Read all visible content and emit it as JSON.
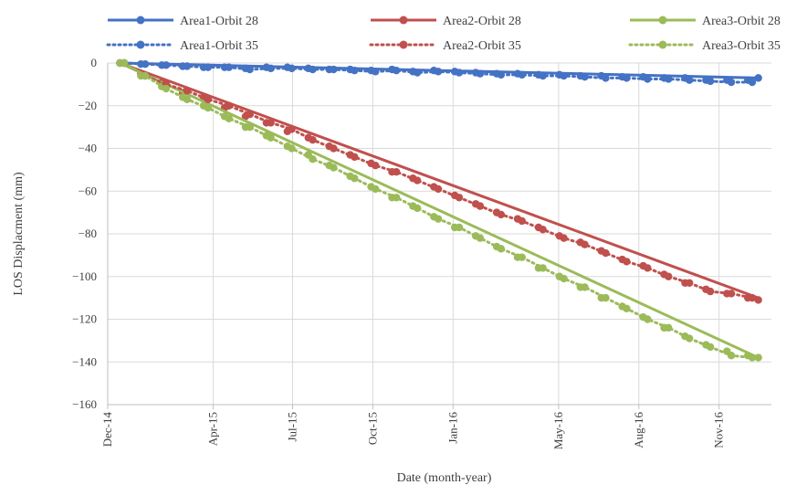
{
  "chart_data": {
    "type": "line",
    "xlabel": "Date  (month-year)",
    "ylabel": "LOS Displacment (mm)",
    "x_range": [
      "2014-12-01",
      "2016-12-31"
    ],
    "ylim": [
      -160,
      0
    ],
    "y_ticks": [
      0,
      -20,
      -40,
      -60,
      -80,
      -100,
      -120,
      -140,
      -160
    ],
    "x_ticks": [
      {
        "date": "2014-12-01",
        "label": "Dec-14"
      },
      {
        "date": "2015-04-01",
        "label": "Apr-15"
      },
      {
        "date": "2015-07-01",
        "label": "Jul-15"
      },
      {
        "date": "2015-10-01",
        "label": "Oct-15"
      },
      {
        "date": "2016-01-01",
        "label": "Jan-16"
      },
      {
        "date": "2016-05-01",
        "label": "May-16"
      },
      {
        "date": "2016-08-01",
        "label": "Aug-16"
      },
      {
        "date": "2016-11-01",
        "label": "Nov-16"
      }
    ],
    "grid": true,
    "legend_position": "top",
    "series": [
      {
        "name": "Area1-Orbit 28",
        "color": "#4472C4",
        "dash": "solid",
        "trend_end": -7,
        "points": [
          [
            "2014-12-15",
            0
          ],
          [
            "2015-01-08",
            -0.5
          ],
          [
            "2015-02-01",
            -1
          ],
          [
            "2015-02-25",
            -1.5
          ],
          [
            "2015-03-21",
            -2
          ],
          [
            "2015-04-14",
            -2
          ],
          [
            "2015-05-08",
            -2.5
          ],
          [
            "2015-06-01",
            -2
          ],
          [
            "2015-06-25",
            -2
          ],
          [
            "2015-07-19",
            -2.5
          ],
          [
            "2015-08-12",
            -3
          ],
          [
            "2015-09-05",
            -3
          ],
          [
            "2015-09-29",
            -3.5
          ],
          [
            "2015-10-23",
            -3
          ],
          [
            "2015-11-16",
            -4
          ],
          [
            "2015-12-10",
            -3.5
          ],
          [
            "2016-01-03",
            -4
          ],
          [
            "2016-01-27",
            -4.5
          ],
          [
            "2016-02-20",
            -5
          ],
          [
            "2016-03-15",
            -5
          ],
          [
            "2016-04-08",
            -5.5
          ],
          [
            "2016-05-02",
            -5.5
          ],
          [
            "2016-05-26",
            -6
          ],
          [
            "2016-06-19",
            -6
          ],
          [
            "2016-07-13",
            -6.5
          ],
          [
            "2016-08-06",
            -6.5
          ],
          [
            "2016-08-30",
            -7
          ],
          [
            "2016-09-23",
            -7
          ],
          [
            "2016-10-17",
            -8
          ],
          [
            "2016-11-10",
            -8
          ],
          [
            "2016-12-04",
            -8
          ],
          [
            "2016-12-16",
            -7
          ]
        ]
      },
      {
        "name": "Area2-Orbit 28",
        "color": "#C0504D",
        "dash": "solid",
        "trend_end": -110,
        "points": [
          [
            "2014-12-15",
            0
          ],
          [
            "2015-01-08",
            -5
          ],
          [
            "2015-02-01",
            -9
          ],
          [
            "2015-02-25",
            -14
          ],
          [
            "2015-03-21",
            -16
          ],
          [
            "2015-04-14",
            -21
          ],
          [
            "2015-05-08",
            -25
          ],
          [
            "2015-06-01",
            -28
          ],
          [
            "2015-06-25",
            -32
          ],
          [
            "2015-07-19",
            -35
          ],
          [
            "2015-08-12",
            -39
          ],
          [
            "2015-09-05",
            -43
          ],
          [
            "2015-09-29",
            -47
          ],
          [
            "2015-10-23",
            -51
          ],
          [
            "2015-11-16",
            -54
          ],
          [
            "2015-12-10",
            -58
          ],
          [
            "2016-01-03",
            -62
          ],
          [
            "2016-01-27",
            -66
          ],
          [
            "2016-02-20",
            -70
          ],
          [
            "2016-03-15",
            -73
          ],
          [
            "2016-04-08",
            -77
          ],
          [
            "2016-05-02",
            -81
          ],
          [
            "2016-05-26",
            -84
          ],
          [
            "2016-06-19",
            -88
          ],
          [
            "2016-07-13",
            -92
          ],
          [
            "2016-08-06",
            -95
          ],
          [
            "2016-08-30",
            -99
          ],
          [
            "2016-09-23",
            -103
          ],
          [
            "2016-10-17",
            -106
          ],
          [
            "2016-11-10",
            -108
          ],
          [
            "2016-12-04",
            -110
          ],
          [
            "2016-12-16",
            -111
          ]
        ]
      },
      {
        "name": "Area3-Orbit 28",
        "color": "#9BBB59",
        "dash": "solid",
        "trend_end": -138,
        "points": [
          [
            "2014-12-15",
            0
          ],
          [
            "2015-01-08",
            -6
          ],
          [
            "2015-02-01",
            -11
          ],
          [
            "2015-02-25",
            -16
          ],
          [
            "2015-03-21",
            -20
          ],
          [
            "2015-04-14",
            -25
          ],
          [
            "2015-05-08",
            -30
          ],
          [
            "2015-06-01",
            -34
          ],
          [
            "2015-06-25",
            -39
          ],
          [
            "2015-07-19",
            -43
          ],
          [
            "2015-08-12",
            -48
          ],
          [
            "2015-09-05",
            -53
          ],
          [
            "2015-09-29",
            -58
          ],
          [
            "2015-10-23",
            -63
          ],
          [
            "2015-11-16",
            -67
          ],
          [
            "2015-12-10",
            -72
          ],
          [
            "2016-01-03",
            -77
          ],
          [
            "2016-01-27",
            -81
          ],
          [
            "2016-02-20",
            -86
          ],
          [
            "2016-03-15",
            -91
          ],
          [
            "2016-04-08",
            -96
          ],
          [
            "2016-05-02",
            -100
          ],
          [
            "2016-05-26",
            -105
          ],
          [
            "2016-06-19",
            -110
          ],
          [
            "2016-07-13",
            -114
          ],
          [
            "2016-08-06",
            -119
          ],
          [
            "2016-08-30",
            -124
          ],
          [
            "2016-09-23",
            -128
          ],
          [
            "2016-10-17",
            -132
          ],
          [
            "2016-11-10",
            -135
          ],
          [
            "2016-12-04",
            -137
          ],
          [
            "2016-12-16",
            -138
          ]
        ]
      },
      {
        "name": "Area1-Orbit 35",
        "color": "#4472C4",
        "dash": "dotted",
        "points": [
          [
            "2014-12-20",
            0
          ],
          [
            "2015-01-13",
            -0.5
          ],
          [
            "2015-02-06",
            -1
          ],
          [
            "2015-03-02",
            -1.5
          ],
          [
            "2015-03-26",
            -2
          ],
          [
            "2015-04-19",
            -2
          ],
          [
            "2015-05-13",
            -3
          ],
          [
            "2015-06-06",
            -2.5
          ],
          [
            "2015-06-30",
            -2.5
          ],
          [
            "2015-07-24",
            -3
          ],
          [
            "2015-08-17",
            -3
          ],
          [
            "2015-09-10",
            -3.5
          ],
          [
            "2015-10-04",
            -4
          ],
          [
            "2015-10-28",
            -3.5
          ],
          [
            "2015-11-21",
            -4.5
          ],
          [
            "2015-12-15",
            -4
          ],
          [
            "2016-01-08",
            -4.5
          ],
          [
            "2016-02-01",
            -5
          ],
          [
            "2016-02-25",
            -5.5
          ],
          [
            "2016-03-20",
            -5.5
          ],
          [
            "2016-04-13",
            -6
          ],
          [
            "2016-05-07",
            -6
          ],
          [
            "2016-05-31",
            -6.5
          ],
          [
            "2016-06-24",
            -7
          ],
          [
            "2016-07-18",
            -7
          ],
          [
            "2016-08-11",
            -7.5
          ],
          [
            "2016-09-04",
            -7.5
          ],
          [
            "2016-09-28",
            -8
          ],
          [
            "2016-10-22",
            -8.5
          ],
          [
            "2016-11-15",
            -9
          ],
          [
            "2016-12-09",
            -9
          ]
        ]
      },
      {
        "name": "Area2-Orbit 35",
        "color": "#C0504D",
        "dash": "dotted",
        "points": [
          [
            "2014-12-20",
            0
          ],
          [
            "2015-01-13",
            -6
          ],
          [
            "2015-02-06",
            -10
          ],
          [
            "2015-03-02",
            -13
          ],
          [
            "2015-03-26",
            -17
          ],
          [
            "2015-04-19",
            -20
          ],
          [
            "2015-05-13",
            -24
          ],
          [
            "2015-06-06",
            -28
          ],
          [
            "2015-06-30",
            -31
          ],
          [
            "2015-07-24",
            -36
          ],
          [
            "2015-08-17",
            -40
          ],
          [
            "2015-09-10",
            -44
          ],
          [
            "2015-10-04",
            -48
          ],
          [
            "2015-10-28",
            -51
          ],
          [
            "2015-11-21",
            -55
          ],
          [
            "2015-12-15",
            -59
          ],
          [
            "2016-01-08",
            -63
          ],
          [
            "2016-02-01",
            -67
          ],
          [
            "2016-02-25",
            -71
          ],
          [
            "2016-03-20",
            -74
          ],
          [
            "2016-04-13",
            -78
          ],
          [
            "2016-05-07",
            -82
          ],
          [
            "2016-05-31",
            -85
          ],
          [
            "2016-06-24",
            -89
          ],
          [
            "2016-07-18",
            -93
          ],
          [
            "2016-08-11",
            -96
          ],
          [
            "2016-09-04",
            -100
          ],
          [
            "2016-09-28",
            -103
          ],
          [
            "2016-10-22",
            -107
          ],
          [
            "2016-11-15",
            -108
          ],
          [
            "2016-12-09",
            -110
          ]
        ]
      },
      {
        "name": "Area3-Orbit 35",
        "color": "#9BBB59",
        "dash": "dotted",
        "points": [
          [
            "2014-12-20",
            0
          ],
          [
            "2015-01-13",
            -6
          ],
          [
            "2015-02-06",
            -12
          ],
          [
            "2015-03-02",
            -17
          ],
          [
            "2015-03-26",
            -21
          ],
          [
            "2015-04-19",
            -26
          ],
          [
            "2015-05-13",
            -30
          ],
          [
            "2015-06-06",
            -35
          ],
          [
            "2015-06-30",
            -40
          ],
          [
            "2015-07-24",
            -45
          ],
          [
            "2015-08-17",
            -49
          ],
          [
            "2015-09-10",
            -54
          ],
          [
            "2015-10-04",
            -59
          ],
          [
            "2015-10-28",
            -63
          ],
          [
            "2015-11-21",
            -68
          ],
          [
            "2015-12-15",
            -73
          ],
          [
            "2016-01-08",
            -77
          ],
          [
            "2016-02-01",
            -82
          ],
          [
            "2016-02-25",
            -87
          ],
          [
            "2016-03-20",
            -91
          ],
          [
            "2016-04-13",
            -96
          ],
          [
            "2016-05-07",
            -101
          ],
          [
            "2016-05-31",
            -105
          ],
          [
            "2016-06-24",
            -110
          ],
          [
            "2016-07-18",
            -115
          ],
          [
            "2016-08-11",
            -120
          ],
          [
            "2016-09-04",
            -124
          ],
          [
            "2016-09-28",
            -129
          ],
          [
            "2016-10-22",
            -133
          ],
          [
            "2016-11-15",
            -137
          ],
          [
            "2016-12-09",
            -138
          ]
        ]
      }
    ]
  }
}
